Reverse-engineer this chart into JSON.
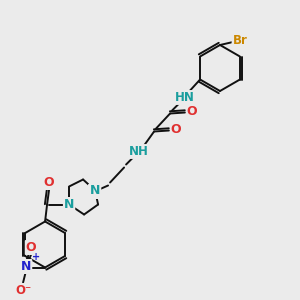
{
  "bg": "#ebebeb",
  "bond_color": "#111111",
  "N_color": "#1a9e9e",
  "O_color": "#e03030",
  "Br_color": "#cc8800",
  "N_blue_color": "#2222cc",
  "figsize": [
    3.0,
    3.0
  ],
  "dpi": 100,
  "xlim": [
    0,
    300
  ],
  "ylim": [
    0,
    300
  ]
}
